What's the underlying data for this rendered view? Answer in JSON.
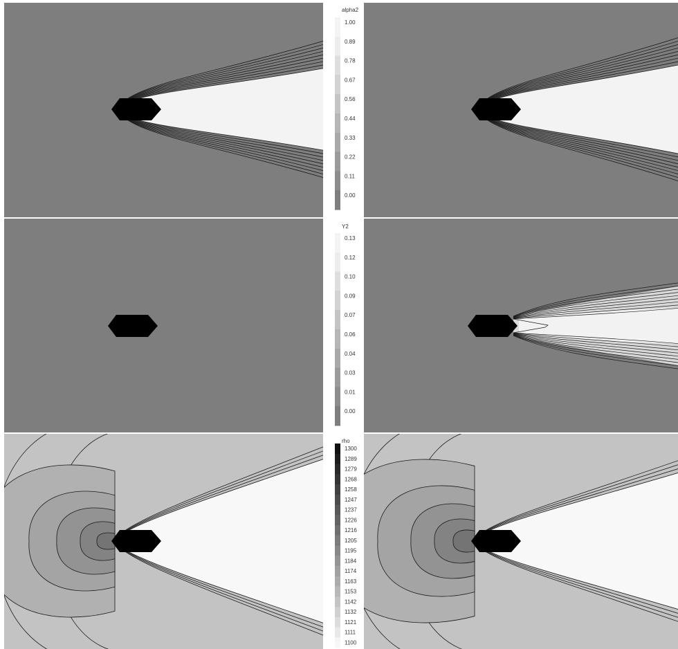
{
  "colorbars": [
    {
      "title": "alpha2",
      "ticks": [
        "1.00",
        "0.89",
        "0.78",
        "0.67",
        "0.56",
        "0.44",
        "0.33",
        "0.22",
        "0.11",
        "0.00"
      ],
      "colors": [
        "#f4f4f4",
        "#ececec",
        "#dedede",
        "#d2d2d2",
        "#c4c4c4",
        "#b6b6b6",
        "#a8a8a8",
        "#9a9a9a",
        "#8c8c8c",
        "#7e7e7e"
      ]
    },
    {
      "title": "Y2",
      "ticks": [
        "0.13",
        "0.12",
        "0.10",
        "0.09",
        "0.07",
        "0.06",
        "0.04",
        "0.03",
        "0.01",
        "0.00"
      ],
      "colors": [
        "#f4f4f4",
        "#ececec",
        "#dedede",
        "#d2d2d2",
        "#c4c4c4",
        "#b6b6b6",
        "#a8a8a8",
        "#9a9a9a",
        "#8c8c8c",
        "#7e7e7e"
      ]
    },
    {
      "title": "rho",
      "ticks": [
        "1300",
        "1289",
        "1279",
        "1268",
        "1258",
        "1247",
        "1237",
        "1226",
        "1216",
        "1205",
        "1195",
        "1184",
        "1174",
        "1163",
        "1153",
        "1142",
        "1132",
        "1121",
        "1111",
        "1100"
      ],
      "colors": [
        "#101010",
        "#1c1c1c",
        "#282828",
        "#343434",
        "#404040",
        "#4c4c4c",
        "#585858",
        "#646464",
        "#707070",
        "#7c7c7c",
        "#888888",
        "#949494",
        "#a0a0a0",
        "#acacac",
        "#b8b8b8",
        "#c4c4c4",
        "#d0d0d0",
        "#dcdcdc",
        "#e8e8e8",
        "#f6f6f6"
      ]
    }
  ],
  "colors": {
    "ambient": "#7e7e7e",
    "plume": "#f3f3f3",
    "body": "#000000",
    "rho_far": "#c3c3c3",
    "rho_plume": "#f8f8f8",
    "rho_rings": [
      "#b1b1b1",
      "#a4a4a4",
      "#939393",
      "#838383",
      "#747474"
    ],
    "contour": "#1a1a1a",
    "separator": "#ffffff"
  }
}
